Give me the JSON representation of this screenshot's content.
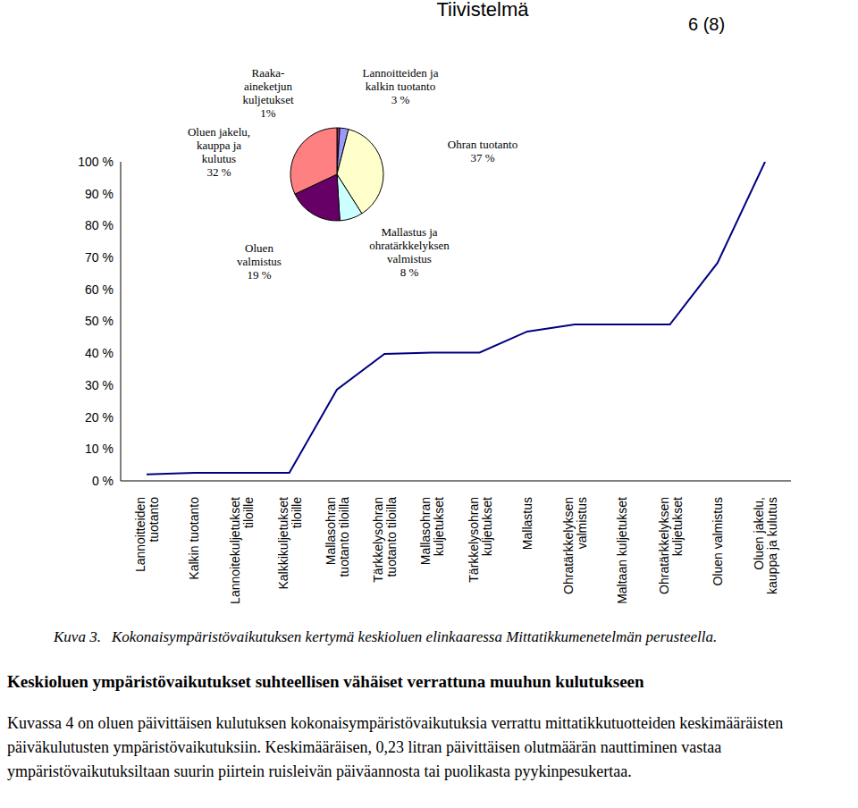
{
  "header": {
    "title": "Tiivistelmä",
    "page": "6 (8)"
  },
  "chart_data": [
    {
      "type": "line",
      "categories": [
        "Lannoitteiden tuotanto",
        "Kalkin tuotanto",
        "Lannoitekuljetukset tiloille",
        "Kalkkikuljetukset tiloille",
        "Mallasohran tuotanto tiloilla",
        "Tärkkelysohran tuotanto tiloilla",
        "Mallasohran kuljetukset",
        "Tärkkelysohran kuljetukset",
        "Mallastus",
        "Ohratärkkelyksen valmistus",
        "Maltaan kuljetukset",
        "Ohratärkkelyksen kuljetukset",
        "Oluen valmistus",
        "Oluen jakelu, kauppa ja kulutus"
      ],
      "values": [
        2.0,
        2.5,
        2.5,
        2.5,
        28.6,
        39.8,
        40.2,
        40.2,
        46.8,
        49.0,
        49.0,
        49.0,
        68.3,
        100
      ],
      "color": "#000080",
      "ylim": [
        0,
        100
      ],
      "yticks": [
        {
          "value": 0,
          "label": "0 %"
        },
        {
          "value": 10,
          "label": "10 %"
        },
        {
          "value": 20,
          "label": "20 %"
        },
        {
          "value": 30,
          "label": "30 %"
        },
        {
          "value": 40,
          "label": "40 %"
        },
        {
          "value": 50,
          "label": "50 %"
        },
        {
          "value": 60,
          "label": "60 %"
        },
        {
          "value": 70,
          "label": "70 %"
        },
        {
          "value": 80,
          "label": "80 %"
        },
        {
          "value": 90,
          "label": "90 %"
        },
        {
          "value": 100,
          "label": "100 %"
        }
      ]
    },
    {
      "type": "pie",
      "categories": [
        "Raaka-aineketjun kuljetukset",
        "Lannoitteiden ja kalkin tuotanto",
        "Ohran tuotanto",
        "Mallastus ja ohratärkkelyksen valmistus",
        "Oluen valmistus",
        "Oluen jakelu, kauppa ja kulutus"
      ],
      "values": [
        1,
        3,
        37,
        8,
        19,
        32
      ],
      "value_labels": [
        "1%",
        "3 %",
        "37 %",
        "8 %",
        "19 %",
        "32 %"
      ],
      "colors": [
        "#993366",
        "#9999ff",
        "#ffffcc",
        "#ccffff",
        "#660066",
        "#ff8080"
      ]
    }
  ],
  "caption": {
    "label": "Kuva 3.",
    "text": "Kokonaisympäristövaikutuksen kertymä keskioluen elinkaaressa Mittatikkumenetelmän perusteella."
  },
  "heading": "Keskioluen ympäristövaikutukset suhteellisen vähäiset verrattuna muuhun kulutukseen",
  "paragraph": "Kuvassa 4 on oluen päivittäisen kulutuksen kokonaisympäristövaikutuksia verrattu mittatikkutuotteiden keskimääräisten päiväkulutusten ympäristövaikutuksiin. Keskimääräisen, 0,23 litran päivittäisen olutmäärän nauttiminen vastaa ympäristövaikutuksiltaan suurin piirtein ruisleivän päiväannosta tai puolikasta pyykinpesukertaa."
}
